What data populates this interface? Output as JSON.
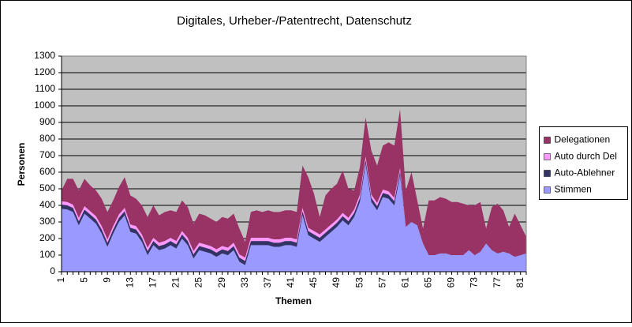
{
  "chart_data": {
    "type": "stacked-area",
    "title": "Digitales, Urheber-/Patentrecht, Datenschutz",
    "x_label": "Themen",
    "y_label": "Personen",
    "categories": [
      "1",
      null,
      null,
      null,
      "5",
      null,
      null,
      null,
      "9",
      null,
      null,
      null,
      "13",
      null,
      null,
      null,
      "17",
      null,
      null,
      null,
      "21",
      null,
      null,
      null,
      "25",
      null,
      null,
      null,
      "29",
      null,
      null,
      null,
      "33",
      null,
      null,
      null,
      "37",
      null,
      null,
      null,
      "41",
      null,
      null,
      null,
      "45",
      null,
      null,
      null,
      "49",
      null,
      null,
      null,
      "53",
      null,
      null,
      null,
      "57",
      null,
      null,
      null,
      "61",
      null,
      null,
      null,
      "65",
      null,
      null,
      null,
      "69",
      null,
      null,
      null,
      "73",
      null,
      null,
      null,
      "77",
      null,
      null,
      null,
      "81",
      null
    ],
    "ylim": [
      0,
      1300
    ],
    "yticks": [
      0,
      100,
      200,
      300,
      400,
      500,
      600,
      700,
      800,
      900,
      1000,
      1100,
      1200,
      1300
    ],
    "grid": true,
    "legend": "right",
    "series": [
      {
        "name": "Stimmen",
        "color": "#9999ff",
        "values": [
          380,
          375,
          360,
          280,
          350,
          320,
          290,
          230,
          150,
          230,
          300,
          340,
          240,
          230,
          180,
          100,
          160,
          130,
          140,
          160,
          140,
          200,
          160,
          80,
          130,
          120,
          110,
          90,
          110,
          100,
          130,
          60,
          40,
          160,
          160,
          160,
          160,
          150,
          150,
          160,
          160,
          150,
          340,
          220,
          200,
          180,
          210,
          240,
          270,
          310,
          280,
          330,
          420,
          650,
          420,
          370,
          450,
          440,
          400,
          580,
          270,
          300,
          280,
          170,
          100,
          100,
          110,
          110,
          100,
          100,
          100,
          130,
          100,
          120,
          170,
          130,
          110,
          120,
          110,
          90,
          100,
          110
        ]
      },
      {
        "name": "Auto-Ablehner",
        "color": "#333366",
        "values": [
          25,
          25,
          25,
          25,
          25,
          25,
          25,
          25,
          25,
          25,
          25,
          25,
          25,
          25,
          25,
          25,
          25,
          25,
          25,
          25,
          25,
          25,
          25,
          25,
          25,
          25,
          25,
          25,
          25,
          25,
          25,
          25,
          25,
          25,
          25,
          25,
          25,
          25,
          25,
          25,
          25,
          25,
          25,
          25,
          25,
          25,
          25,
          25,
          25,
          25,
          25,
          25,
          25,
          25,
          25,
          25,
          25,
          25,
          25,
          25,
          0,
          0,
          0,
          0,
          0,
          0,
          0,
          0,
          0,
          0,
          0,
          0,
          0,
          0,
          0,
          0,
          0,
          0,
          0,
          0,
          0,
          0
        ]
      },
      {
        "name": "Auto durch Del",
        "color": "#ff99ff",
        "values": [
          20,
          20,
          20,
          20,
          20,
          20,
          20,
          20,
          20,
          20,
          20,
          20,
          20,
          20,
          20,
          20,
          20,
          20,
          20,
          20,
          20,
          20,
          20,
          20,
          20,
          20,
          20,
          20,
          20,
          20,
          20,
          20,
          20,
          20,
          20,
          20,
          20,
          20,
          20,
          20,
          20,
          20,
          20,
          20,
          20,
          20,
          20,
          20,
          20,
          20,
          20,
          20,
          20,
          20,
          20,
          20,
          20,
          20,
          20,
          20,
          0,
          0,
          0,
          0,
          0,
          0,
          0,
          0,
          0,
          0,
          0,
          0,
          0,
          0,
          0,
          0,
          0,
          0,
          0,
          0,
          0,
          0
        ]
      },
      {
        "name": "Delegationen",
        "color": "#993366",
        "values": [
          65,
          140,
          155,
          165,
          165,
          155,
          155,
          165,
          165,
          155,
          165,
          185,
          175,
          165,
          175,
          185,
          195,
          165,
          175,
          165,
          175,
          185,
          185,
          165,
          175,
          175,
          165,
          165,
          175,
          175,
          175,
          155,
          95,
          155,
          165,
          155,
          165,
          165,
          165,
          165,
          165,
          165,
          255,
          305,
          225,
          105,
          205,
          215,
          215,
          255,
          175,
          115,
          165,
          235,
          265,
          225,
          265,
          295,
          315,
          355,
          220,
          300,
          150,
          90,
          330,
          330,
          340,
          330,
          320,
          320,
          310,
          270,
          300,
          300,
          90,
          260,
          300,
          250,
          160,
          260,
          180,
          100
        ]
      }
    ]
  }
}
